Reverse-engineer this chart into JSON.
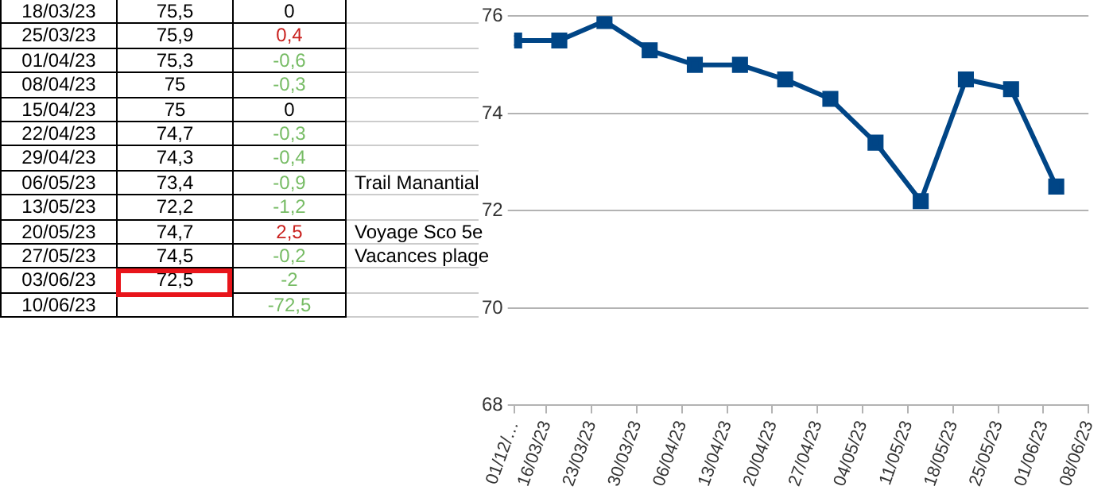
{
  "chart_data": [
    {
      "type": "other",
      "categories": [
        "18/03/23",
        "25/03/23",
        "01/04/23",
        "08/04/23",
        "15/04/23",
        "22/04/23",
        "29/04/23",
        "06/05/23",
        "13/05/23",
        "20/05/23",
        "27/05/23",
        "03/06/23",
        "10/06/23"
      ],
      "series": [
        {
          "color": "#000000",
          "values": [
            75.5,
            75.9,
            75.3,
            75,
            75,
            74.7,
            74.3,
            73.4,
            72.2,
            74.7,
            74.5,
            72.5,
            null
          ],
          "value_labels": [
            "75,5",
            "75,9",
            "75,3",
            "75",
            "75",
            "74,7",
            "74,3",
            "73,4",
            "72,2",
            "74,7",
            "74,5",
            "72,5",
            null
          ]
        },
        {
          "colors": [
            "#000000",
            "#c9211e",
            "#77bc65",
            "#77bc65",
            "#000000",
            "#77bc65",
            "#77bc65",
            "#77bc65",
            "#77bc65",
            "#c9211e",
            "#77bc65",
            "#77bc65",
            "#77bc65"
          ],
          "values": [
            0,
            0.4,
            -0.6,
            -0.3,
            0,
            -0.3,
            -0.4,
            -0.9,
            -1.2,
            2.5,
            -0.2,
            -2,
            -72.5
          ],
          "value_labels": [
            "0",
            "0,4",
            "-0,6",
            "-0,3",
            "0",
            "-0,3",
            "-0,4",
            "-0,9",
            "-1,2",
            "2,5",
            "-0,2",
            "-2",
            "-72,5"
          ]
        }
      ],
      "annotations": [
        {
          "text": "Trail Manantial",
          "x": "06/05/23"
        },
        {
          "text": "Voyage Sco 5e",
          "x": "20/05/23"
        },
        {
          "text": "Vacances plage",
          "x": "27/05/23"
        }
      ]
    },
    {
      "type": "line",
      "x": [
        "--03-11",
        "--03-18",
        "--03-25",
        "--04-01",
        "--04-08",
        "--04-15",
        "--04-22",
        "--04-29",
        "--05-06",
        "--05-13",
        "--05-20",
        "--05-27",
        "--06-03"
      ],
      "series": [
        {
          "color": "#004586",
          "values": [
            75.5,
            75.5,
            75.9,
            75.3,
            75,
            75,
            74.7,
            74.3,
            73.4,
            72.2,
            74.7,
            74.5,
            72.5
          ]
        }
      ],
      "xlim": [
        "--03-11",
        "--06-08"
      ],
      "xticks": [
        {
          "value": "--03-11",
          "label": "01/12/…"
        },
        {
          "value": "--03-16",
          "label": "16/03/23"
        },
        {
          "value": "--03-23",
          "label": "23/03/23"
        },
        {
          "value": "--03-30",
          "label": "30/03/23"
        },
        {
          "value": "--04-06",
          "label": "06/04/23"
        },
        {
          "value": "--04-13",
          "label": "13/04/23"
        },
        {
          "value": "--04-20",
          "label": "20/04/23"
        },
        {
          "value": "--04-27",
          "label": "27/04/23"
        },
        {
          "value": "--05-04",
          "label": "04/05/23"
        },
        {
          "value": "--05-11",
          "label": "11/05/23"
        },
        {
          "value": "--05-18",
          "label": "18/05/23"
        },
        {
          "value": "--05-25",
          "label": "25/05/23"
        },
        {
          "value": "--06-01",
          "label": "01/06/23"
        },
        {
          "value": "--06-08",
          "label": "08/06/23"
        }
      ],
      "ylim": [
        68,
        76
      ],
      "yticks": [
        68,
        70,
        72,
        74,
        76
      ],
      "grid": "y",
      "legend": false,
      "marker": "square",
      "line_style": "solid"
    }
  ]
}
